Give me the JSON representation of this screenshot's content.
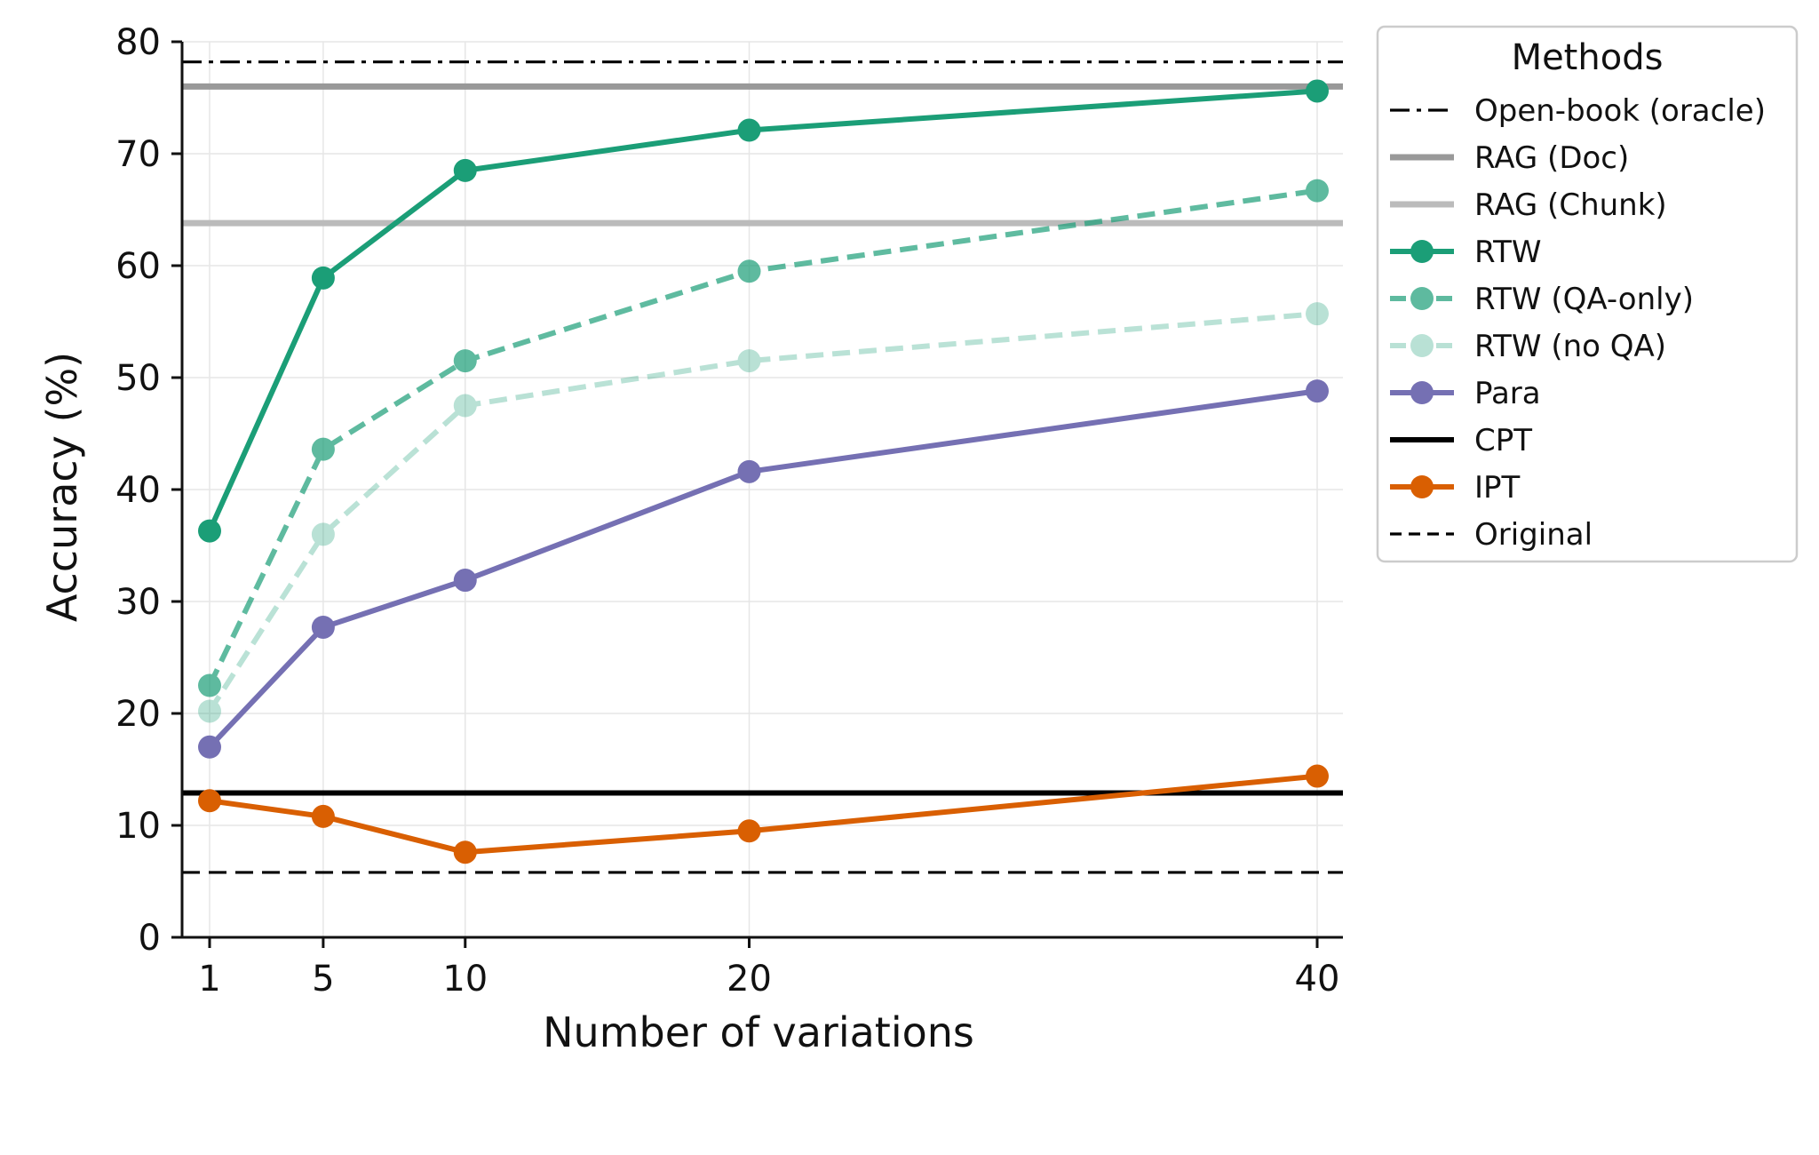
{
  "chart_data": {
    "type": "line",
    "xlabel": "Number of variations",
    "ylabel": "Accuracy (%)",
    "xticks": [
      1,
      5,
      10,
      20,
      40
    ],
    "yticks": [
      0,
      10,
      20,
      30,
      40,
      50,
      60,
      70,
      80
    ],
    "xlim": [
      0,
      41
    ],
    "ylim": [
      0,
      80
    ],
    "grid": true,
    "legend": {
      "title": "Methods",
      "placement": "outside-right-top"
    },
    "series": [
      {
        "name": "Open-book (oracle)",
        "kind": "hline",
        "y": 78.2,
        "color": "#000000",
        "style": "dashdot"
      },
      {
        "name": "RAG (Doc)",
        "kind": "hline",
        "y": 76.0,
        "color": "#999999",
        "style": "solid"
      },
      {
        "name": "RAG (Chunk)",
        "kind": "hline",
        "y": 63.8,
        "color": "#bbbbbb",
        "style": "solid"
      },
      {
        "name": "RTW",
        "kind": "line",
        "x": [
          1,
          5,
          10,
          20,
          40
        ],
        "values": [
          36.3,
          58.9,
          68.5,
          72.1,
          75.6
        ],
        "color": "#1b9e77",
        "style": "solid",
        "opacity": 1.0
      },
      {
        "name": "RTW (QA-only)",
        "kind": "line",
        "x": [
          1,
          5,
          10,
          20,
          40
        ],
        "values": [
          22.5,
          43.6,
          51.5,
          59.5,
          66.7
        ],
        "color": "#1b9e77",
        "style": "dashed",
        "opacity": 0.7
      },
      {
        "name": "RTW (no QA)",
        "kind": "line",
        "x": [
          1,
          5,
          10,
          20,
          40
        ],
        "values": [
          20.2,
          36.0,
          47.5,
          51.5,
          55.7
        ],
        "color": "#1b9e77",
        "style": "dashed",
        "opacity": 0.3
      },
      {
        "name": "Para",
        "kind": "line",
        "x": [
          1,
          5,
          10,
          20,
          40
        ],
        "values": [
          17.0,
          27.7,
          31.9,
          41.6,
          48.8
        ],
        "color": "#7570b3",
        "style": "solid",
        "opacity": 1.0
      },
      {
        "name": "CPT",
        "kind": "hline",
        "y": 12.9,
        "color": "#000000",
        "style": "solid"
      },
      {
        "name": "IPT",
        "kind": "line",
        "x": [
          1,
          5,
          10,
          20,
          40
        ],
        "values": [
          12.2,
          10.8,
          7.6,
          9.5,
          14.4
        ],
        "color": "#d95f02",
        "style": "solid",
        "opacity": 1.0
      },
      {
        "name": "Original",
        "kind": "hline",
        "y": 5.8,
        "color": "#000000",
        "style": "dashed"
      }
    ]
  }
}
